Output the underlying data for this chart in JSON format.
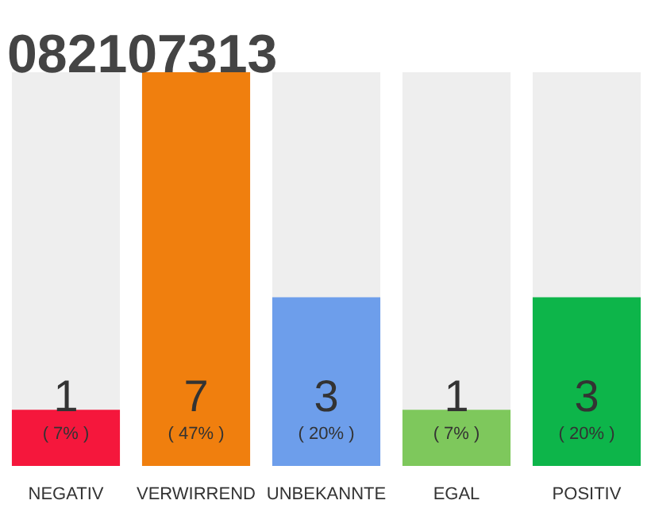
{
  "chart_data": {
    "type": "bar",
    "title": "082107313",
    "categories": [
      "NEGATIV",
      "VERWIRREND",
      "UNBEKANNTE",
      "EGAL",
      "POSITIV"
    ],
    "values": [
      1,
      7,
      3,
      1,
      3
    ],
    "colors": [
      "#f5173c",
      "#f07f0e",
      "#6d9eeb",
      "#7ec85c",
      "#0db54a"
    ],
    "ylim": [
      0,
      7
    ],
    "data_labels": true,
    "grid": false,
    "tick_labels": "x",
    "annotations": [
      "( 7% )",
      "( 47% )",
      "( 20% )",
      "( 7% )",
      "( 20% )"
    ]
  }
}
